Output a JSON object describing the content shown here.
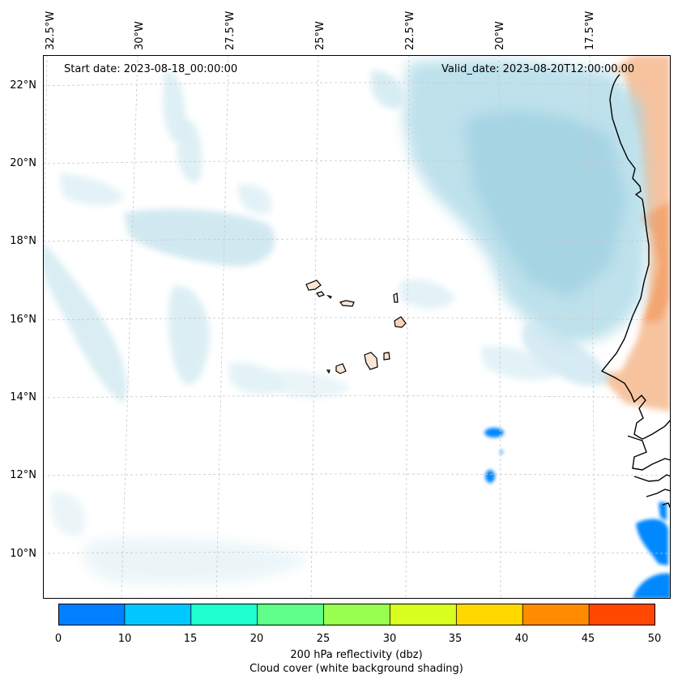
{
  "map": {
    "start_label": "Start date: 2023-08-18_00:00:00",
    "valid_label": "Valid_date: 2023-08-20T12:00:00.00",
    "lon_labels": [
      "32.5°W",
      "30°W",
      "27.5°W",
      "25°W",
      "22.5°W",
      "20°W",
      "17.5°W"
    ],
    "lat_labels": [
      "22°N",
      "20°N",
      "18°N",
      "16°N",
      "14°N",
      "12°N",
      "10°N"
    ],
    "extent": {
      "lon_min": -32.6,
      "lon_max": -15.5,
      "lat_min": 8.9,
      "lat_max": 22.7
    }
  },
  "colorbar": {
    "ticks": [
      "0",
      "10",
      "15",
      "20",
      "25",
      "30",
      "35",
      "40",
      "45",
      "50"
    ],
    "colors": [
      "#0080ff",
      "#00c8ff",
      "#20ffd0",
      "#60ff8a",
      "#98ff50",
      "#d8ff20",
      "#ffd800",
      "#ff8c00",
      "#ff4800"
    ],
    "label_line1": "200 hPa reflectivity (dbz)",
    "label_line2": "Cloud cover (white background shading)"
  }
}
